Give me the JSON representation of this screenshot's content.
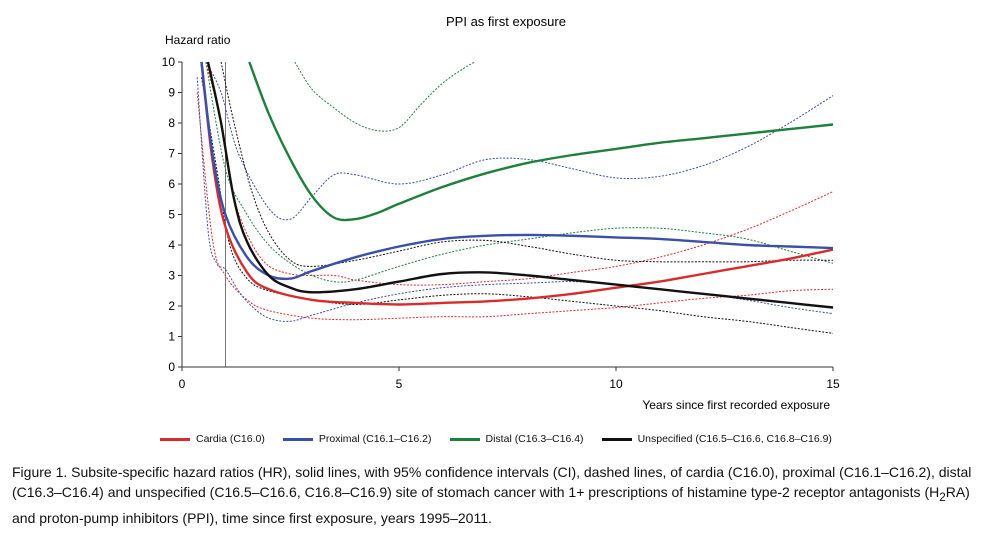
{
  "chart_data": {
    "type": "line",
    "title": "PPI as first exposure",
    "ylabel": "Hazard ratio",
    "xlabel": "Years since first recorded exposure",
    "xlim": [
      0,
      15
    ],
    "ylim": [
      0,
      10
    ],
    "xticks": [
      0,
      5,
      10,
      15
    ],
    "yticks": [
      0,
      1,
      2,
      3,
      4,
      5,
      6,
      7,
      8,
      9,
      10
    ],
    "reference_line_x": 1,
    "grid": false,
    "legend_position": "bottom",
    "series": [
      {
        "name": "Cardia (C16.0)",
        "color": "#d92b2b",
        "hr": [
          [
            0.45,
            10
          ],
          [
            0.7,
            6.8
          ],
          [
            1,
            4.6
          ],
          [
            1.5,
            3.1
          ],
          [
            2,
            2.55
          ],
          [
            3,
            2.2
          ],
          [
            4,
            2.1
          ],
          [
            5,
            2.05
          ],
          [
            6,
            2.1
          ],
          [
            7,
            2.15
          ],
          [
            8,
            2.25
          ],
          [
            9,
            2.4
          ],
          [
            10,
            2.6
          ],
          [
            11,
            2.8
          ],
          [
            12,
            3.05
          ],
          [
            13,
            3.3
          ],
          [
            14,
            3.55
          ],
          [
            15,
            3.85
          ]
        ],
        "ci_low": [
          [
            0.35,
            9
          ],
          [
            0.7,
            4.2
          ],
          [
            1,
            3.0
          ],
          [
            1.5,
            2.2
          ],
          [
            2,
            1.85
          ],
          [
            3,
            1.6
          ],
          [
            4,
            1.55
          ],
          [
            5,
            1.6
          ],
          [
            6,
            1.65
          ],
          [
            7,
            1.65
          ],
          [
            8,
            1.75
          ],
          [
            9,
            1.85
          ],
          [
            10,
            1.95
          ],
          [
            11,
            2.1
          ],
          [
            12,
            2.25
          ],
          [
            13,
            2.35
          ],
          [
            14,
            2.5
          ],
          [
            15,
            2.55
          ]
        ],
        "ci_high": [
          [
            0.55,
            10
          ],
          [
            0.9,
            8.0
          ],
          [
            1.2,
            5.5
          ],
          [
            1.8,
            3.6
          ],
          [
            2.5,
            3.05
          ],
          [
            3.5,
            3.0
          ],
          [
            4,
            2.85
          ],
          [
            5,
            2.7
          ],
          [
            6,
            2.7
          ],
          [
            7,
            2.8
          ],
          [
            8,
            2.9
          ],
          [
            9,
            3.1
          ],
          [
            10,
            3.3
          ],
          [
            11,
            3.6
          ],
          [
            12,
            4.0
          ],
          [
            13,
            4.5
          ],
          [
            14,
            5.1
          ],
          [
            15,
            5.75
          ]
        ]
      },
      {
        "name": "Proximal (C16.1–C16.2)",
        "color": "#3a4fa8",
        "hr": [
          [
            0.45,
            10
          ],
          [
            0.7,
            7.0
          ],
          [
            1,
            5.0
          ],
          [
            1.5,
            3.6
          ],
          [
            2,
            3.0
          ],
          [
            2.5,
            2.9
          ],
          [
            3,
            3.15
          ],
          [
            4,
            3.6
          ],
          [
            5,
            3.95
          ],
          [
            6,
            4.2
          ],
          [
            7,
            4.3
          ],
          [
            8,
            4.33
          ],
          [
            9,
            4.3
          ],
          [
            10,
            4.25
          ],
          [
            11,
            4.2
          ],
          [
            12,
            4.1
          ],
          [
            13,
            4.0
          ],
          [
            14,
            3.95
          ],
          [
            15,
            3.9
          ]
        ],
        "ci_low": [
          [
            0.35,
            9.5
          ],
          [
            0.6,
            4.5
          ],
          [
            0.8,
            3.4
          ],
          [
            1,
            3.2
          ],
          [
            1.3,
            2.5
          ],
          [
            1.6,
            2.0
          ],
          [
            2,
            1.6
          ],
          [
            2.5,
            1.5
          ],
          [
            3,
            1.7
          ],
          [
            4,
            2.1
          ],
          [
            5,
            2.4
          ],
          [
            6,
            2.6
          ],
          [
            7,
            2.7
          ],
          [
            8,
            2.75
          ],
          [
            9,
            2.8
          ],
          [
            10,
            2.7
          ],
          [
            11,
            2.55
          ],
          [
            12,
            2.4
          ],
          [
            13,
            2.2
          ],
          [
            14,
            1.95
          ],
          [
            15,
            1.75
          ]
        ],
        "ci_high": [
          [
            0.55,
            10
          ],
          [
            0.9,
            9.0
          ],
          [
            1.3,
            7.0
          ],
          [
            2,
            5.2
          ],
          [
            2.5,
            4.85
          ],
          [
            3,
            5.6
          ],
          [
            3.5,
            6.3
          ],
          [
            4,
            6.3
          ],
          [
            5,
            6.0
          ],
          [
            6,
            6.3
          ],
          [
            7,
            6.8
          ],
          [
            8,
            6.8
          ],
          [
            9,
            6.5
          ],
          [
            10,
            6.2
          ],
          [
            11,
            6.25
          ],
          [
            12,
            6.6
          ],
          [
            13,
            7.2
          ],
          [
            14,
            8.0
          ],
          [
            15,
            8.9
          ]
        ]
      },
      {
        "name": "Distal (C16.3–C16.4)",
        "color": "#1f7f3c",
        "hr": [
          [
            1.55,
            10
          ],
          [
            2,
            8.3
          ],
          [
            2.5,
            6.8
          ],
          [
            3,
            5.6
          ],
          [
            3.5,
            4.9
          ],
          [
            4,
            4.85
          ],
          [
            4.5,
            5.05
          ],
          [
            5,
            5.35
          ],
          [
            6,
            5.9
          ],
          [
            7,
            6.35
          ],
          [
            8,
            6.7
          ],
          [
            9,
            6.95
          ],
          [
            10,
            7.15
          ],
          [
            11,
            7.35
          ],
          [
            12,
            7.5
          ],
          [
            13,
            7.65
          ],
          [
            14,
            7.8
          ],
          [
            15,
            7.95
          ]
        ],
        "ci_low": [
          [
            0.55,
            10
          ],
          [
            1,
            6.5
          ],
          [
            1.5,
            5.0
          ],
          [
            2,
            4.0
          ],
          [
            2.5,
            3.4
          ],
          [
            3,
            3.0
          ],
          [
            3.5,
            2.8
          ],
          [
            4,
            2.85
          ],
          [
            5,
            3.3
          ],
          [
            6,
            3.7
          ],
          [
            7,
            4.0
          ],
          [
            8,
            4.2
          ],
          [
            9,
            4.4
          ],
          [
            10,
            4.55
          ],
          [
            11,
            4.55
          ],
          [
            12,
            4.4
          ],
          [
            13,
            4.2
          ],
          [
            14,
            3.8
          ],
          [
            15,
            3.4
          ]
        ],
        "ci_high": [
          [
            2.6,
            10
          ],
          [
            3,
            9.1
          ],
          [
            3.5,
            8.5
          ],
          [
            4,
            8.0
          ],
          [
            4.5,
            7.75
          ],
          [
            5,
            7.85
          ],
          [
            5.5,
            8.6
          ],
          [
            6,
            9.3
          ],
          [
            6.5,
            9.8
          ],
          [
            6.75,
            10
          ]
        ]
      },
      {
        "name": "Unspecified (C16.5–C16.6, C16.8–C16.9)",
        "color": "#111111",
        "hr": [
          [
            0.6,
            10
          ],
          [
            0.9,
            8.0
          ],
          [
            1.2,
            5.5
          ],
          [
            1.5,
            4.1
          ],
          [
            2,
            3.0
          ],
          [
            2.5,
            2.6
          ],
          [
            3,
            2.45
          ],
          [
            4,
            2.55
          ],
          [
            5,
            2.8
          ],
          [
            6,
            3.05
          ],
          [
            7,
            3.1
          ],
          [
            8,
            3.0
          ],
          [
            9,
            2.85
          ],
          [
            10,
            2.7
          ],
          [
            11,
            2.55
          ],
          [
            12,
            2.4
          ],
          [
            13,
            2.25
          ],
          [
            14,
            2.1
          ],
          [
            15,
            1.95
          ]
        ],
        "ci_low": [
          [
            0.45,
            9.5
          ],
          [
            0.8,
            6.5
          ],
          [
            1.1,
            4.0
          ],
          [
            1.5,
            2.9
          ],
          [
            2,
            2.5
          ],
          [
            3,
            2.2
          ],
          [
            4,
            2.05
          ],
          [
            5,
            2.2
          ],
          [
            6,
            2.35
          ],
          [
            7,
            2.4
          ],
          [
            8,
            2.3
          ],
          [
            9,
            2.15
          ],
          [
            10,
            2.0
          ],
          [
            11,
            1.85
          ],
          [
            12,
            1.65
          ],
          [
            13,
            1.5
          ],
          [
            14,
            1.3
          ],
          [
            15,
            1.1
          ]
        ],
        "ci_high": [
          [
            0.9,
            10
          ],
          [
            1.2,
            8.0
          ],
          [
            1.6,
            5.8
          ],
          [
            2,
            4.4
          ],
          [
            2.5,
            3.5
          ],
          [
            3,
            3.3
          ],
          [
            4,
            3.5
          ],
          [
            5,
            3.8
          ],
          [
            6,
            4.1
          ],
          [
            7,
            4.15
          ],
          [
            8,
            3.95
          ],
          [
            9,
            3.7
          ],
          [
            10,
            3.5
          ],
          [
            11,
            3.45
          ],
          [
            12,
            3.45
          ],
          [
            13,
            3.45
          ],
          [
            14,
            3.5
          ],
          [
            15,
            3.5
          ]
        ]
      }
    ]
  },
  "caption": {
    "text_before": "Figure 1. Subsite-specific hazard ratios (HR), solid lines, with 95% confidence intervals (CI), dashed lines, of cardia (C16.0), proximal (C16.1–C16.2), distal (C16.3–C16.4) and unspecified (C16.5–C16.6, C16.8–C16.9) site of stomach cancer with 1+ prescriptions of histamine type-2 receptor antagonists (H",
    "subscript": "2",
    "text_after": "RA) and proton-pump inhibitors (PPI), time since first exposure, years 1995–2011."
  }
}
